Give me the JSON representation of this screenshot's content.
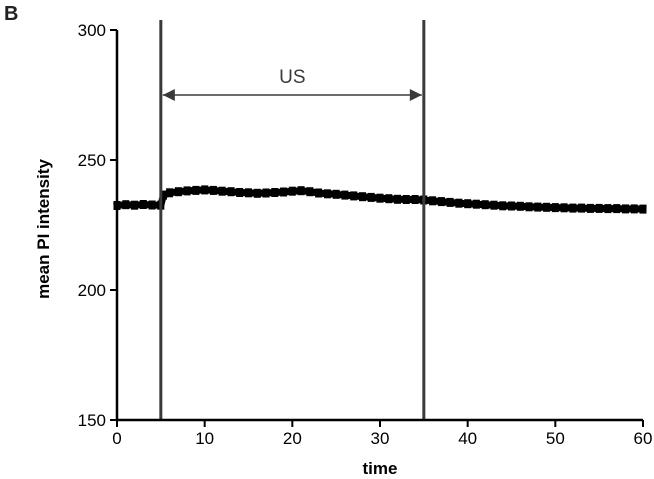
{
  "panel_label": "B",
  "colors": {
    "series": "#000000",
    "marker_lines": "#3a3a3a"
  },
  "chart_data": {
    "type": "line",
    "title": "",
    "xlabel": "time",
    "ylabel": "mean PI intensity",
    "xlim": [
      0,
      60
    ],
    "ylim": [
      150,
      300
    ],
    "xticks": [
      0,
      10,
      20,
      30,
      40,
      50,
      60
    ],
    "yticks": [
      150,
      200,
      250,
      300
    ],
    "grid": false,
    "vertical_lines": [
      5,
      35
    ],
    "span_annotation": {
      "label": "US",
      "from": 5,
      "to": 35,
      "y": 275
    },
    "series": [
      {
        "x": [
          0,
          1,
          2,
          3,
          4,
          5,
          5.3,
          6,
          7,
          8,
          9,
          10,
          11,
          12,
          13,
          14,
          15,
          16,
          17,
          18,
          19,
          20,
          21,
          22,
          23,
          24,
          25,
          26,
          27,
          28,
          29,
          30,
          31,
          32,
          33,
          34,
          35,
          36,
          37,
          38,
          39,
          40,
          41,
          42,
          43,
          44,
          45,
          46,
          47,
          48,
          49,
          50,
          51,
          52,
          53,
          54,
          55,
          56,
          57,
          58,
          59,
          60
        ],
        "values": [
          232.5,
          232.8,
          232.6,
          232.9,
          232.7,
          232.6,
          236.5,
          237.4,
          237.8,
          238.1,
          238.3,
          238.5,
          238.3,
          238.0,
          237.8,
          237.5,
          237.4,
          237.2,
          237.3,
          237.5,
          237.7,
          238.0,
          238.2,
          237.8,
          237.3,
          237.0,
          236.8,
          236.5,
          236.2,
          235.9,
          235.6,
          235.3,
          235.1,
          234.9,
          234.8,
          234.8,
          234.6,
          234.3,
          234.0,
          233.7,
          233.4,
          233.2,
          233.0,
          232.8,
          232.6,
          232.4,
          232.3,
          232.2,
          232.0,
          231.9,
          231.8,
          231.7,
          231.6,
          231.5,
          231.5,
          231.4,
          231.4,
          231.3,
          231.3,
          231.2,
          231.2,
          231.1
        ]
      }
    ]
  }
}
